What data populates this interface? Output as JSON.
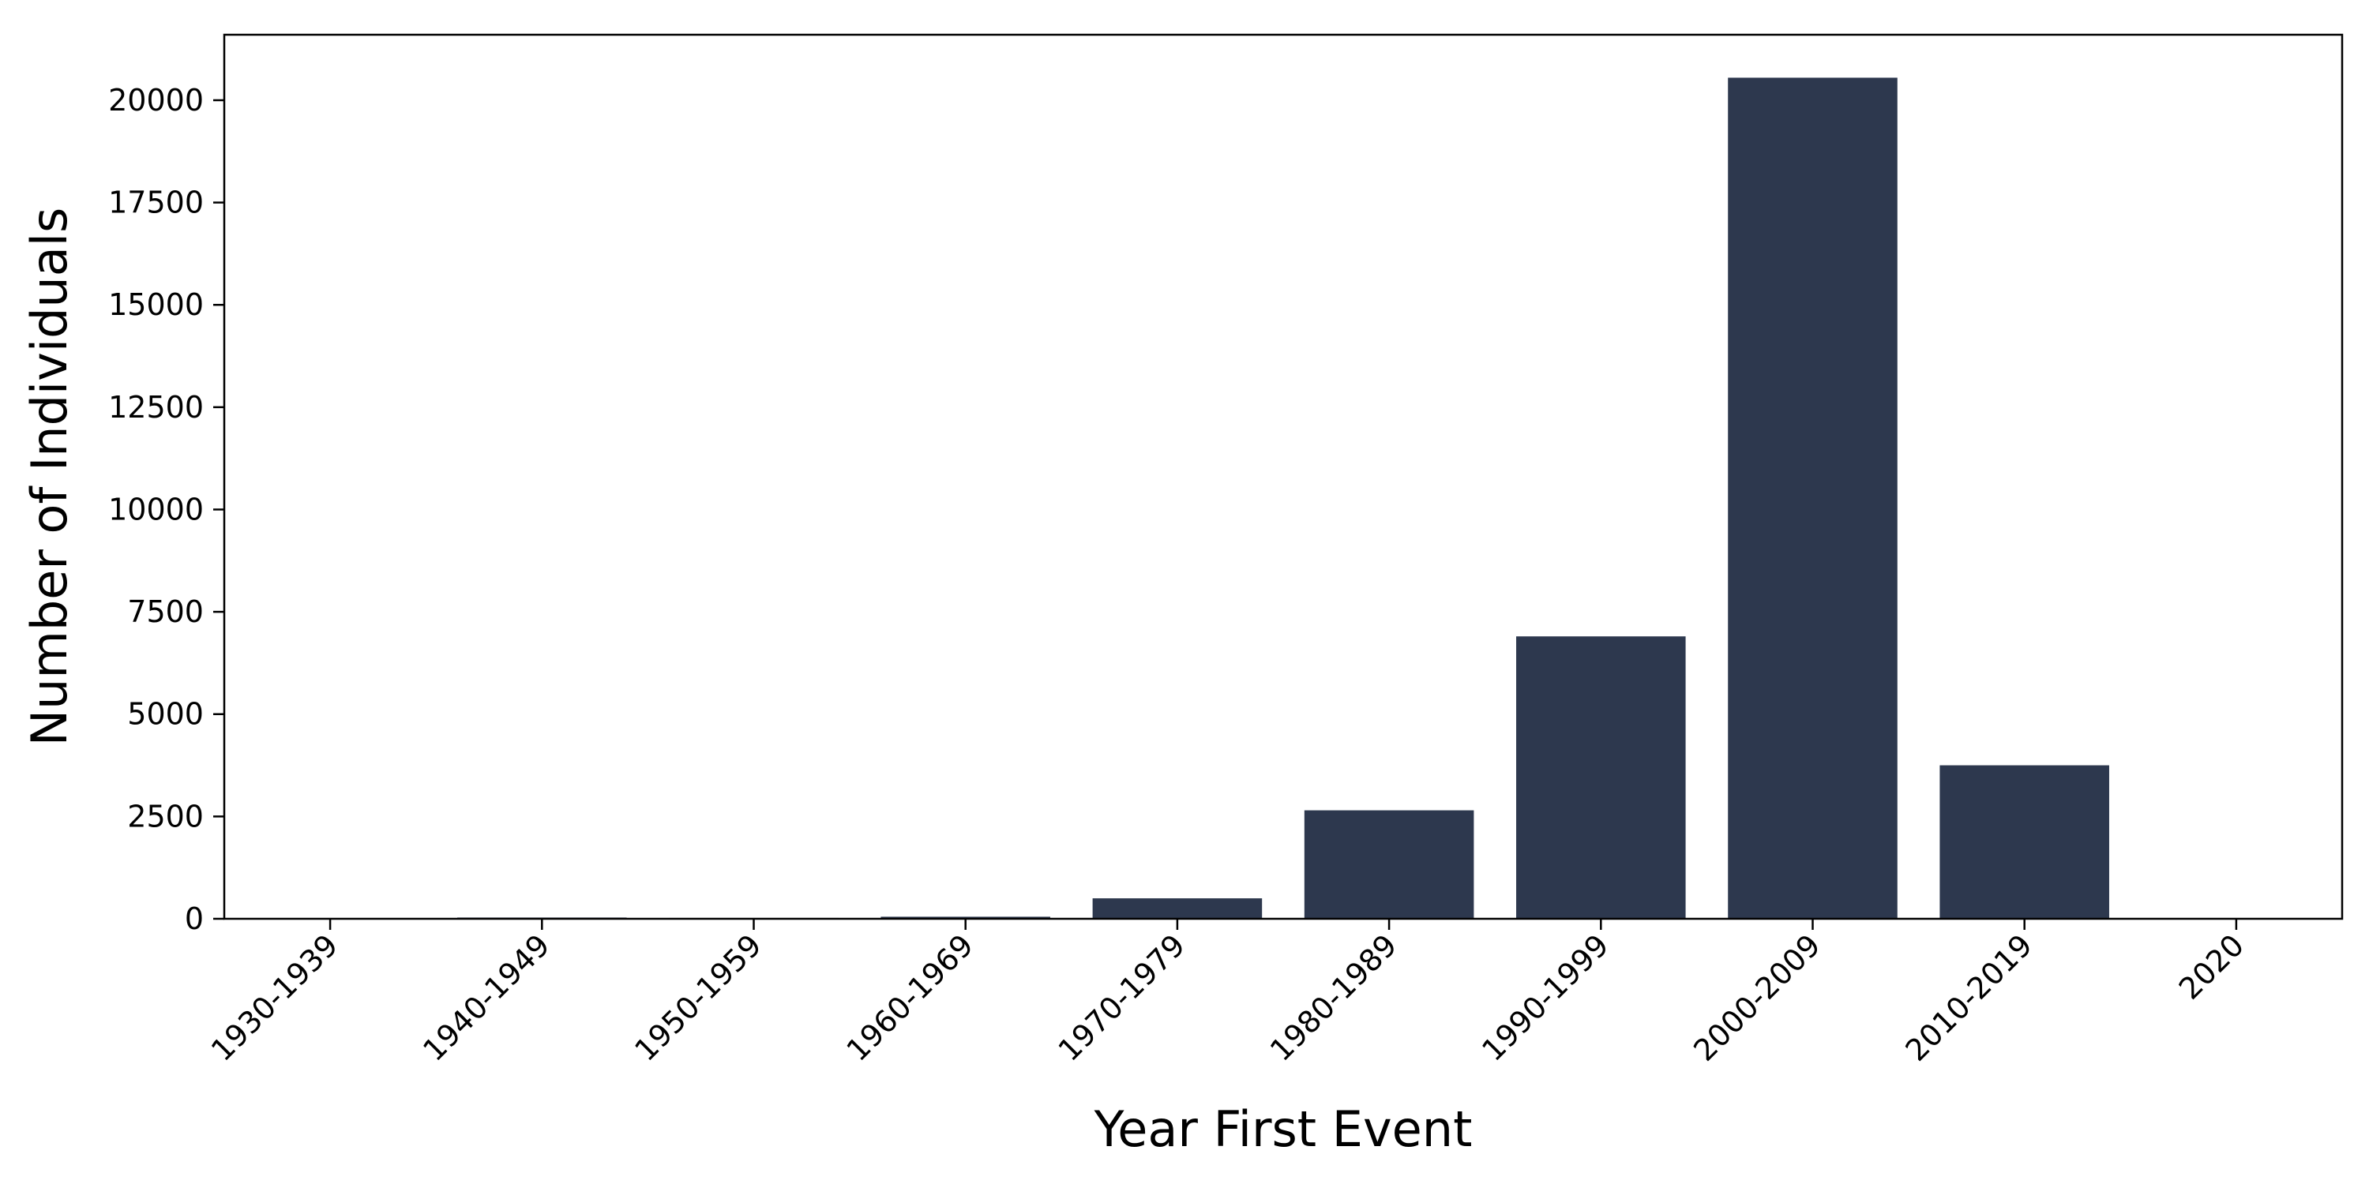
{
  "chart_data": {
    "type": "bar",
    "xlabel": "Year First Event",
    "ylabel": "Number of Individuals",
    "categories": [
      "1930-1939",
      "1940-1949",
      "1950-1959",
      "1960-1969",
      "1970-1979",
      "1980-1989",
      "1990-1999",
      "2000-2009",
      "2010-2019",
      "2020"
    ],
    "values": [
      5,
      30,
      20,
      50,
      500,
      2650,
      6900,
      20550,
      3750,
      3
    ],
    "ylim": [
      0,
      21600
    ],
    "yticks": [
      0,
      2500,
      5000,
      7500,
      10000,
      12500,
      15000,
      17500,
      20000
    ],
    "grid": false,
    "legend": false,
    "bar_color": "#2d384e"
  }
}
